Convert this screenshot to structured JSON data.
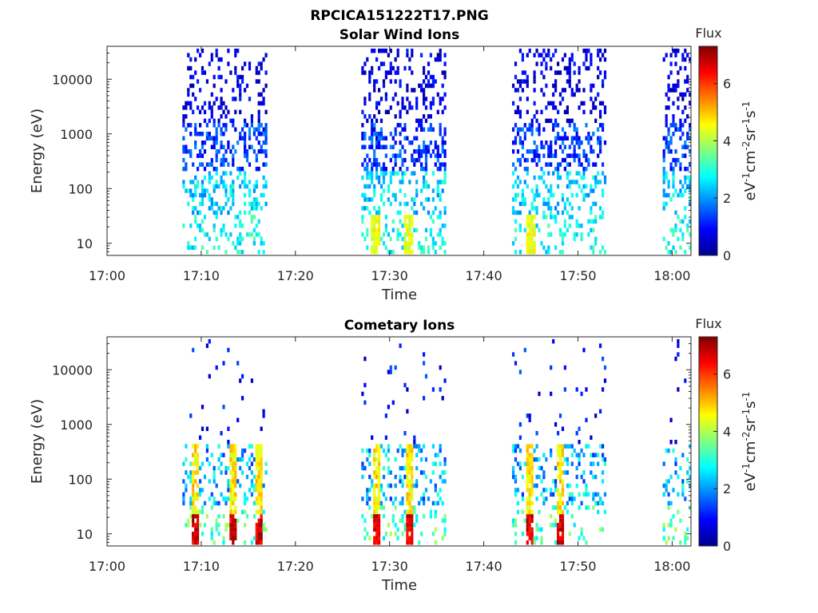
{
  "figure_title": "RPCICA151222T17.PNG",
  "colorbar_colors": [
    "#00008f",
    "#0000ff",
    "#0080ff",
    "#00ffff",
    "#80ff80",
    "#ffff00",
    "#ff8000",
    "#ff0000",
    "#800000"
  ],
  "chart_data": [
    {
      "type": "heatmap",
      "title": "Solar Wind Ions",
      "xlabel": "Time",
      "ylabel": "Energy (eV)",
      "yscale": "log",
      "xlim": [
        "17:00",
        "18:02"
      ],
      "ylim": [
        6,
        40000
      ],
      "xticks": [
        "17:00",
        "17:10",
        "17:20",
        "17:30",
        "17:40",
        "17:50",
        "18:00"
      ],
      "yticks": [
        10,
        100,
        1000,
        10000
      ],
      "ytick_labels": [
        "10",
        "100",
        "1000",
        "10000"
      ],
      "colorbar": {
        "title": "Flux",
        "label": "eV-1cm-2sr-1s-1",
        "range": [
          0,
          7.3
        ],
        "ticks": [
          "0",
          "2",
          "4",
          "6"
        ]
      },
      "data_blocks": [
        {
          "start": "17:08",
          "end": "17:17"
        },
        {
          "start": "17:27",
          "end": "17:36"
        },
        {
          "start": "17:43",
          "end": "17:53"
        },
        {
          "start": "17:59",
          "end": "18:02"
        }
      ],
      "intensity_profile": "Sparse low flux (0–1.5) at 1000–30000 eV; moderate flux (2–3.5) at 10–300 eV; peaks of ~4.5 near 10 eV around 17:28, 17:32 and 17:45."
    },
    {
      "type": "heatmap",
      "title": "Cometary Ions",
      "xlabel": "Time",
      "ylabel": "Energy (eV)",
      "yscale": "log",
      "xlim": [
        "17:00",
        "18:02"
      ],
      "ylim": [
        6,
        40000
      ],
      "xticks": [
        "17:00",
        "17:10",
        "17:20",
        "17:30",
        "17:40",
        "17:50",
        "18:00"
      ],
      "yticks": [
        10,
        100,
        1000,
        10000
      ],
      "ytick_labels": [
        "10",
        "100",
        "1000",
        "10000"
      ],
      "colorbar": {
        "title": "Flux",
        "label": "eV-1cm-2sr-1s-1",
        "range": [
          0,
          7.3
        ],
        "ticks": [
          "0",
          "2",
          "4",
          "6"
        ]
      },
      "data_blocks": [
        {
          "start": "17:08",
          "end": "17:17"
        },
        {
          "start": "17:27",
          "end": "17:36"
        },
        {
          "start": "17:43",
          "end": "17:53"
        },
        {
          "start": "17:59",
          "end": "18:02"
        }
      ],
      "intensity_profile": "Very sparse flux above 1000 eV; moderate flux 10–300 eV; strong peaks (~6–7) near 10 eV at 17:09, 17:13, 17:16, 17:28, 17:32 and 17:45."
    }
  ]
}
